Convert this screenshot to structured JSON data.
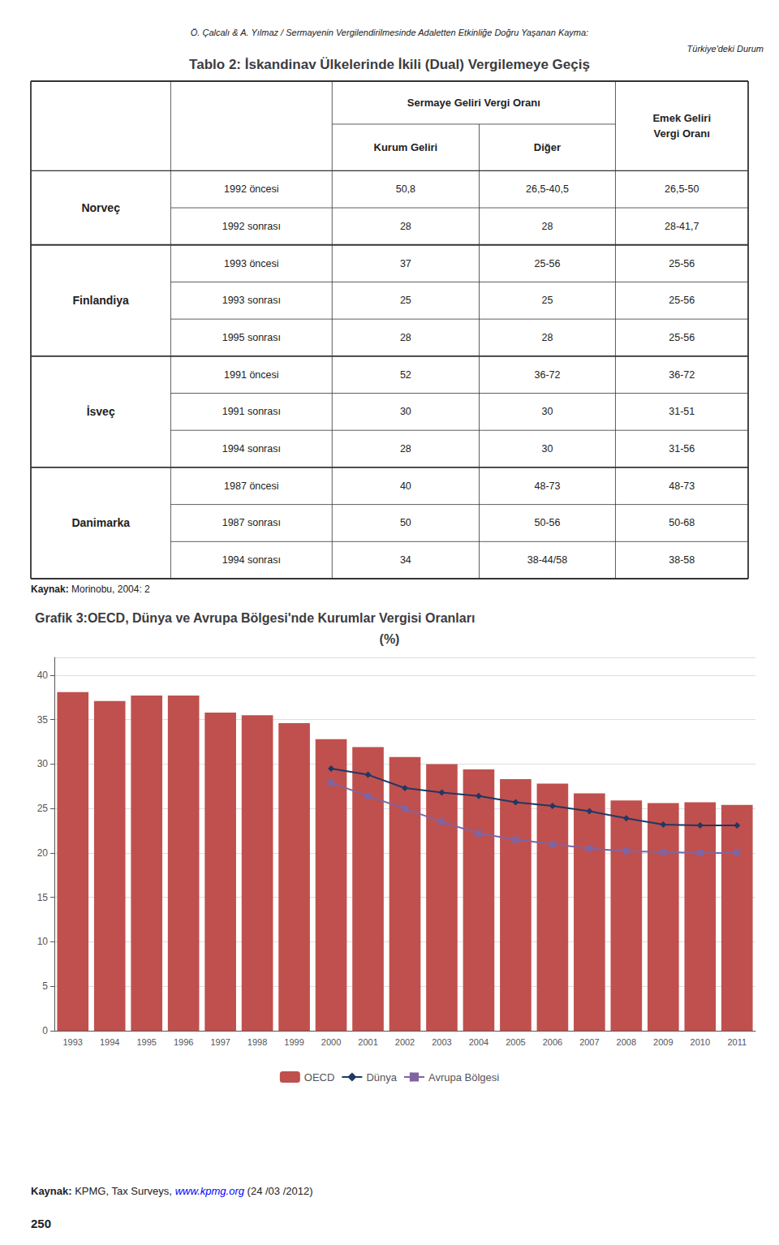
{
  "chart_data": [
    {
      "type": "table",
      "title": "Tablo 2: İskandinav Ülkelerinde İkili (Dual) Vergilemeye Geçiş",
      "annotations": [
        "Ö. Çalcalı & A. Yılmaz / Sermayenin Vergilendirilmesinde Adaletten Etkinliğe Doğru Yaşanan Kayma:",
        "Türkiye'deki Durum",
        "Kaynak: Morinobu, 2004: 2"
      ],
      "columns": [
        {
          "label": "Sermaye Geliri Vergi Oranı",
          "columns": [
            "Kurum Geliri",
            "Diğer"
          ]
        },
        {
          "label": "Emek Geliri\nVergi Oranı"
        }
      ],
      "row_groups": [
        {
          "name": "Norveç",
          "rows": [
            [
              "1992 öncesi",
              "50,8",
              "26,5-40,5",
              "26,5-50"
            ],
            [
              "1992 sonrası",
              "28",
              "28",
              "28-41,7"
            ]
          ]
        },
        {
          "name": "Finlandiya",
          "rows": [
            [
              "1993 öncesi",
              "37",
              "25-56",
              "25-56"
            ],
            [
              "1993 sonrası",
              "25",
              "25",
              "25-56"
            ],
            [
              "1995 sonrası",
              "28",
              "28",
              "25-56"
            ]
          ]
        },
        {
          "name": "İsveç",
          "rows": [
            [
              "1991 öncesi",
              "52",
              "36-72",
              "36-72"
            ],
            [
              "1991 sonrası",
              "30",
              "30",
              "31-51"
            ],
            [
              "1994 sonrası",
              "28",
              "30",
              "31-56"
            ]
          ]
        },
        {
          "name": "Danimarka",
          "rows": [
            [
              "1987 öncesi",
              "40",
              "48-73",
              "48-73"
            ],
            [
              "1987 sonrası",
              "50",
              "50-56",
              "50-68"
            ],
            [
              "1994 sonrası",
              "34",
              "38-44/58",
              "38-58"
            ]
          ]
        }
      ]
    },
    {
      "type": "bar",
      "title": "Grafik 3:OECD, Dünya ve Avrupa Bölgesi'nde Kurumlar Vergisi Oranları",
      "subtitle": "(%)",
      "categories": [
        "1993",
        "1994",
        "1995",
        "1996",
        "1997",
        "1998",
        "1999",
        "2000",
        "2001",
        "2002",
        "2003",
        "2004",
        "2005",
        "2006",
        "2007",
        "2008",
        "2009",
        "2010",
        "2011"
      ],
      "series": [
        {
          "name": "OECD",
          "type": "bar",
          "color": "#C0504D",
          "values": [
            38.1,
            37.1,
            37.7,
            37.7,
            35.8,
            35.5,
            34.6,
            32.8,
            31.9,
            30.8,
            30.0,
            29.4,
            28.3,
            27.8,
            26.7,
            25.9,
            25.6,
            25.7,
            25.4
          ]
        },
        {
          "name": "Dünya",
          "type": "line",
          "color": "#1F3864",
          "marker": "diamond",
          "values": [
            null,
            null,
            null,
            null,
            null,
            null,
            null,
            29.5,
            28.8,
            27.3,
            26.8,
            26.4,
            25.7,
            25.3,
            24.7,
            23.9,
            23.2,
            23.1,
            23.1
          ]
        },
        {
          "name": "Avrupa Bölgesi",
          "type": "line",
          "color": "#8064A2",
          "marker": "square",
          "values": [
            null,
            null,
            null,
            null,
            null,
            null,
            null,
            27.9,
            26.4,
            25.0,
            23.5,
            22.2,
            21.5,
            21.0,
            20.5,
            20.2,
            20.1,
            20.0,
            20.0
          ]
        }
      ],
      "ylim": [
        0,
        42
      ],
      "yticks": [
        0,
        5,
        10,
        15,
        20,
        25,
        30,
        35,
        40
      ],
      "grid": true,
      "legend": "bottom",
      "annotations": [
        "Kaynak: KPMG, Tax Surveys, www.kpmg.org (24 /03 /2012)",
        "250"
      ]
    }
  ]
}
